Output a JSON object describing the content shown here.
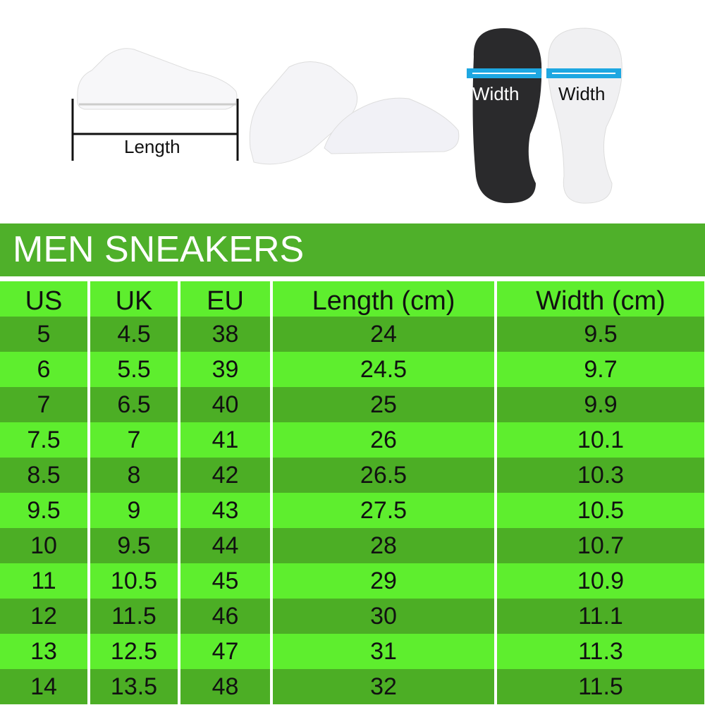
{
  "images": {
    "length_label": "Length",
    "width_label_dark": "Width",
    "width_label_light": "Width"
  },
  "title": "MEN SNEAKERS",
  "colors": {
    "title_bg": "#4fb02a",
    "row_dark": "#4cae25",
    "row_light": "#5eee2e",
    "width_bar": "#1ea7e1"
  },
  "table": {
    "headers": [
      "US",
      "UK",
      "EU",
      "Length (cm)",
      "Width (cm)"
    ],
    "rows": [
      [
        "5",
        "4.5",
        "38",
        "24",
        "9.5"
      ],
      [
        "6",
        "5.5",
        "39",
        "24.5",
        "9.7"
      ],
      [
        "7",
        "6.5",
        "40",
        "25",
        "9.9"
      ],
      [
        "7.5",
        "7",
        "41",
        "26",
        "10.1"
      ],
      [
        "8.5",
        "8",
        "42",
        "26.5",
        "10.3"
      ],
      [
        "9.5",
        "9",
        "43",
        "27.5",
        "10.5"
      ],
      [
        "10",
        "9.5",
        "44",
        "28",
        "10.7"
      ],
      [
        "11",
        "10.5",
        "45",
        "29",
        "10.9"
      ],
      [
        "12",
        "11.5",
        "46",
        "30",
        "11.1"
      ],
      [
        "13",
        "12.5",
        "47",
        "31",
        "11.3"
      ],
      [
        "14",
        "13.5",
        "48",
        "32",
        "11.5"
      ]
    ]
  }
}
